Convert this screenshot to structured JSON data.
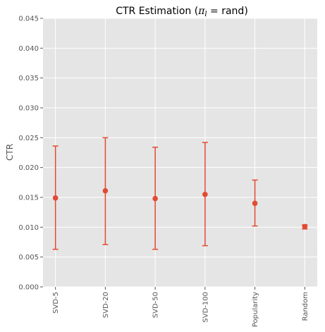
{
  "chart_data": {
    "type": "scatter",
    "title_prefix": "CTR Estimation (",
    "title_pi": "π",
    "title_sub": "l",
    "title_suffix": " =  rand)",
    "xlabel": "",
    "ylabel": "CTR",
    "ylim": [
      0,
      0.045
    ],
    "yticks": [
      "0.000",
      "0.005",
      "0.010",
      "0.015",
      "0.020",
      "0.025",
      "0.030",
      "0.035",
      "0.040",
      "0.045"
    ],
    "grid": true,
    "categories": [
      "SVD-5",
      "SVD-20",
      "SVD-50",
      "SVD-100",
      "Popularity",
      "Random"
    ],
    "values": [
      0.0149,
      0.0161,
      0.0148,
      0.0155,
      0.014,
      0.0101
    ],
    "err_low": [
      0.0063,
      0.0071,
      0.0063,
      0.0069,
      0.0102,
      0.0097
    ],
    "err_high": [
      0.0236,
      0.025,
      0.0234,
      0.0242,
      0.0179,
      0.0104
    ],
    "color": "#E24A33",
    "background": "#E5E5E5",
    "grid_color": "#FFFFFF"
  }
}
